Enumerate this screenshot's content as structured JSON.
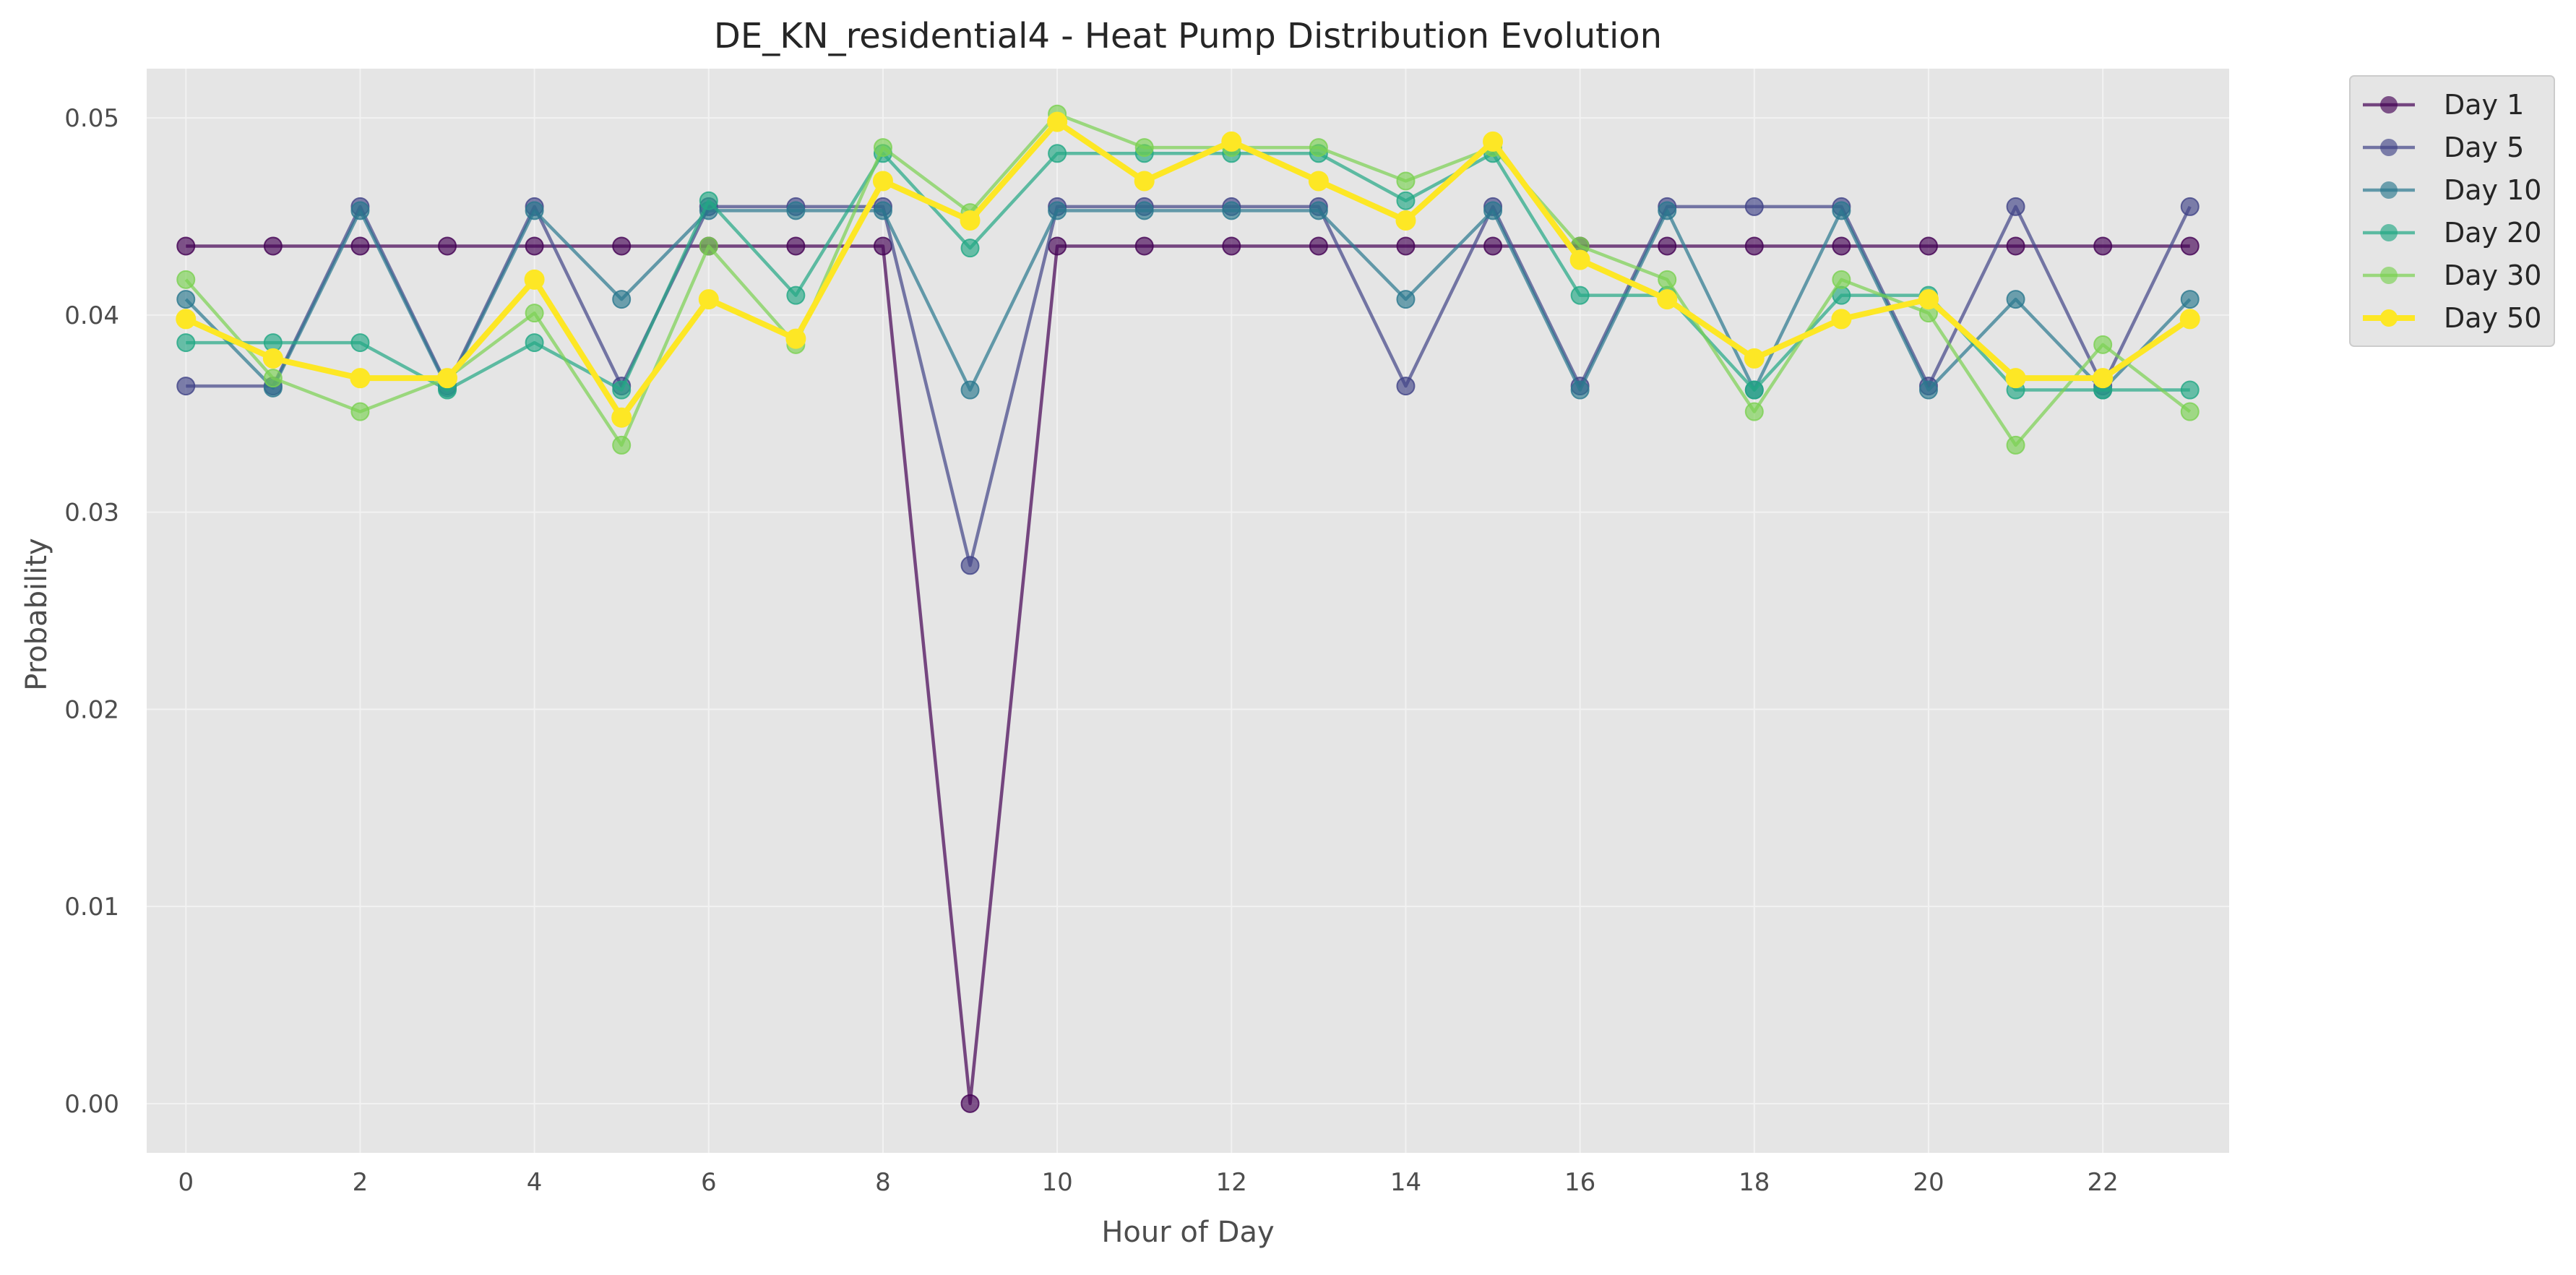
{
  "chart_data": {
    "type": "line",
    "title": "DE_KN_residential4 - Heat Pump Distribution Evolution",
    "xlabel": "Hour of Day",
    "ylabel": "Probability",
    "xlim": [
      -0.45,
      23.45
    ],
    "ylim": [
      -0.0025,
      0.0525
    ],
    "x_ticks": [
      0,
      2,
      4,
      6,
      8,
      10,
      12,
      14,
      16,
      18,
      20,
      22
    ],
    "y_ticks": [
      0.0,
      0.01,
      0.02,
      0.03,
      0.04,
      0.05
    ],
    "y_tick_labels": [
      "0.00",
      "0.01",
      "0.02",
      "0.03",
      "0.04",
      "0.05"
    ],
    "grid": true,
    "background": "#e5e5e5",
    "legend_position": "outside-top-right",
    "x": [
      0,
      1,
      2,
      3,
      4,
      5,
      6,
      7,
      8,
      9,
      10,
      11,
      12,
      13,
      14,
      15,
      16,
      17,
      18,
      19,
      20,
      21,
      22,
      23
    ],
    "series": [
      {
        "name": "Day 1",
        "color": "#440154",
        "emphasis": false,
        "values": [
          0.0435,
          0.0435,
          0.0435,
          0.0435,
          0.0435,
          0.0435,
          0.0435,
          0.0435,
          0.0435,
          0.0,
          0.0435,
          0.0435,
          0.0435,
          0.0435,
          0.0435,
          0.0435,
          0.0435,
          0.0435,
          0.0435,
          0.0435,
          0.0435,
          0.0435,
          0.0435,
          0.0435
        ]
      },
      {
        "name": "Day 5",
        "color": "#414487",
        "emphasis": false,
        "values": [
          0.0364,
          0.0364,
          0.0455,
          0.0364,
          0.0455,
          0.0364,
          0.0455,
          0.0455,
          0.0455,
          0.0273,
          0.0455,
          0.0455,
          0.0455,
          0.0455,
          0.0364,
          0.0455,
          0.0364,
          0.0455,
          0.0455,
          0.0455,
          0.0364,
          0.0455,
          0.0364,
          0.0455
        ]
      },
      {
        "name": "Day 10",
        "color": "#2a788e",
        "emphasis": false,
        "values": [
          0.0408,
          0.0363,
          0.0453,
          0.0363,
          0.0453,
          0.0408,
          0.0453,
          0.0453,
          0.0453,
          0.0362,
          0.0453,
          0.0453,
          0.0453,
          0.0453,
          0.0408,
          0.0453,
          0.0362,
          0.0453,
          0.0362,
          0.0453,
          0.0362,
          0.0408,
          0.0362,
          0.0408
        ]
      },
      {
        "name": "Day 20",
        "color": "#22a884",
        "emphasis": false,
        "values": [
          0.0386,
          0.0386,
          0.0386,
          0.0362,
          0.0386,
          0.0362,
          0.0458,
          0.041,
          0.0482,
          0.0434,
          0.0482,
          0.0482,
          0.0482,
          0.0482,
          0.0458,
          0.0482,
          0.041,
          0.041,
          0.0362,
          0.041,
          0.041,
          0.0362,
          0.0362,
          0.0362
        ]
      },
      {
        "name": "Day 30",
        "color": "#7ad151",
        "emphasis": false,
        "values": [
          0.0418,
          0.0368,
          0.0351,
          0.0368,
          0.0401,
          0.0334,
          0.0435,
          0.0385,
          0.0485,
          0.0452,
          0.0502,
          0.0485,
          0.0485,
          0.0485,
          0.0468,
          0.0485,
          0.0435,
          0.0418,
          0.0351,
          0.0418,
          0.0401,
          0.0334,
          0.0385,
          0.0351
        ]
      },
      {
        "name": "Day 50",
        "color": "#fde725",
        "emphasis": true,
        "values": [
          0.0398,
          0.0378,
          0.0368,
          0.0368,
          0.0418,
          0.0348,
          0.0408,
          0.0388,
          0.0468,
          0.0448,
          0.0498,
          0.0468,
          0.0488,
          0.0468,
          0.0448,
          0.0488,
          0.0428,
          0.0408,
          0.0378,
          0.0398,
          0.0408,
          0.0368,
          0.0368,
          0.0398
        ]
      }
    ]
  }
}
